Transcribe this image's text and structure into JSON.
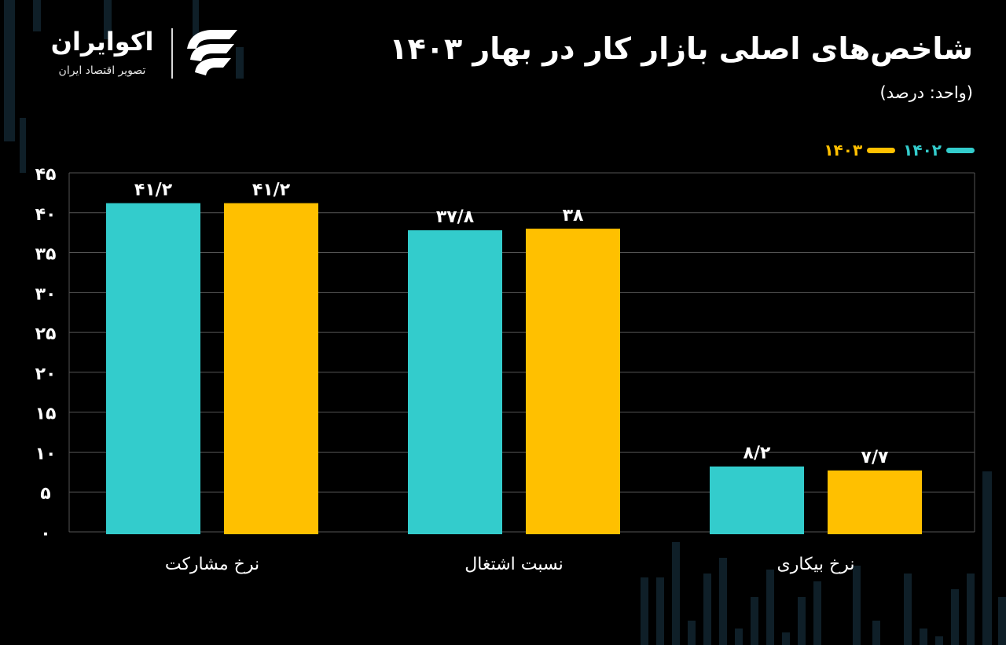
{
  "header": {
    "title": "شاخص‌های اصلی بازار کار در بهار ۱۴۰۳",
    "subtitle": "(واحد: درصد)"
  },
  "brand": {
    "name": "اکوایران",
    "tagline": "تصویر اقتصاد ایران"
  },
  "colors": {
    "background": "#000000",
    "series_1402": "#33cccc",
    "series_1403": "#ffc000",
    "gridline": "#555555",
    "text": "#ffffff"
  },
  "chart_data": {
    "type": "bar",
    "title": "شاخص‌های اصلی بازار کار در بهار ۱۴۰۳",
    "subtitle": "(واحد: درصد)",
    "categories": [
      "نرخ مشارکت",
      "نسبت اشتغال",
      "نرخ بیکاری"
    ],
    "series": [
      {
        "name": "۱۴۰۲",
        "color": "#33cccc",
        "values": [
          41.2,
          37.8,
          8.2
        ],
        "labels": [
          "۴۱/۲",
          "۳۷/۸",
          "۸/۲"
        ]
      },
      {
        "name": "۱۴۰۳",
        "color": "#ffc000",
        "values": [
          41.2,
          38.0,
          7.7
        ],
        "labels": [
          "۴۱/۲",
          "۳۸",
          "۷/۷"
        ]
      }
    ],
    "ylim": [
      0,
      45
    ],
    "yticks": [
      0,
      5,
      10,
      15,
      20,
      25,
      30,
      35,
      40,
      45
    ],
    "ytick_labels": [
      "۰",
      "۵",
      "۱۰",
      "۱۵",
      "۲۰",
      "۲۵",
      "۳۰",
      "۳۵",
      "۴۰",
      "۴۵"
    ],
    "grid": true,
    "legend_position": "top-right"
  }
}
